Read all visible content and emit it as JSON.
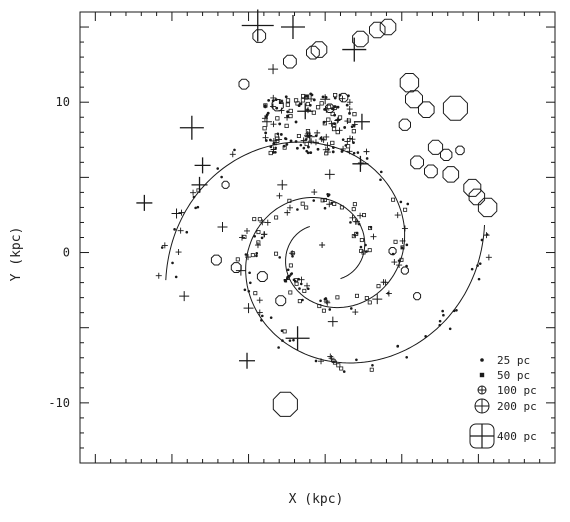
{
  "chart_data": {
    "type": "scatter",
    "xlabel": "X (kpc)",
    "ylabel": "Y (kpc)",
    "xlim": [
      -16,
      15
    ],
    "ylim": [
      -14,
      16
    ],
    "yticks_labeled": [
      -10,
      0,
      10
    ],
    "xtick_step_minor": 1,
    "xtick_step_major": 5,
    "ytick_step_minor": 1,
    "ytick_step_major": 5,
    "grid": false,
    "legend_position": "bottom-right",
    "legend": [
      {
        "symbol": "dot",
        "label": "25 pc"
      },
      {
        "symbol": "small-square",
        "label": "50 pc"
      },
      {
        "symbol": "circle-cross",
        "label": "100 pc"
      },
      {
        "symbol": "circle-cross",
        "label": "200 pc"
      },
      {
        "symbol": "square-cross",
        "label": "400 pc"
      }
    ],
    "spiral_arms": [
      {
        "a": 2.0,
        "pitch_deg": 12.5,
        "theta0_deg": -60,
        "sweep_deg": 430
      },
      {
        "a": 2.0,
        "pitch_deg": 12.5,
        "theta0_deg": 120,
        "sweep_deg": 430
      }
    ],
    "crosses": [
      {
        "x": -4.4,
        "y": 15.1,
        "size": 400
      },
      {
        "x": -2.1,
        "y": 15.0,
        "size": 200
      },
      {
        "x": 1.9,
        "y": 13.5,
        "size": 200
      },
      {
        "x": -8.7,
        "y": 8.3,
        "size": 200
      },
      {
        "x": -11.8,
        "y": 3.3,
        "size": 100
      },
      {
        "x": -1.8,
        "y": -5.7,
        "size": 200
      },
      {
        "x": -5.1,
        "y": -7.2,
        "size": 100
      },
      {
        "x": 2.3,
        "y": 5.9,
        "size": 100
      },
      {
        "x": -8.0,
        "y": 5.8,
        "size": 100
      },
      {
        "x": -8.2,
        "y": 4.5,
        "size": 100
      },
      {
        "x": -1.3,
        "y": 9.4,
        "size": 100
      },
      {
        "x": 2.4,
        "y": 8.7,
        "size": 100
      },
      {
        "x": -3.8,
        "y": 8.7,
        "size": 50
      },
      {
        "x": -1.0,
        "y": 7.7,
        "size": 50
      },
      {
        "x": -2.8,
        "y": 4.5,
        "size": 50
      },
      {
        "x": 0.3,
        "y": 5.2,
        "size": 50
      },
      {
        "x": -9.2,
        "y": -2.9,
        "size": 50
      },
      {
        "x": -6.7,
        "y": 1.7,
        "size": 50
      },
      {
        "x": -5.5,
        "y": -1.2,
        "size": 50
      },
      {
        "x": 0.5,
        "y": -4.6,
        "size": 50
      },
      {
        "x": 3.4,
        "y": -3.1,
        "size": 50
      },
      {
        "x": -9.7,
        "y": 2.6,
        "size": 50
      },
      {
        "x": -3.4,
        "y": 12.2,
        "size": 50
      },
      {
        "x": 0.0,
        "y": 10.2,
        "size": 50
      },
      {
        "x": -0.2,
        "y": 0.5,
        "size": 25
      },
      {
        "x": -5.0,
        "y": -3.7,
        "size": 50
      }
    ],
    "circles": [
      {
        "x": 3.4,
        "y": 14.8,
        "r": 0.55
      },
      {
        "x": 4.1,
        "y": 15.0,
        "r": 0.55
      },
      {
        "x": 2.3,
        "y": 14.2,
        "r": 0.55
      },
      {
        "x": -0.4,
        "y": 13.5,
        "r": 0.55
      },
      {
        "x": -0.8,
        "y": 13.3,
        "r": 0.45
      },
      {
        "x": -2.3,
        "y": 12.7,
        "r": 0.45
      },
      {
        "x": 5.5,
        "y": 11.3,
        "r": 0.65
      },
      {
        "x": 5.8,
        "y": 10.2,
        "r": 0.6
      },
      {
        "x": 6.6,
        "y": 9.5,
        "r": 0.55
      },
      {
        "x": 8.5,
        "y": 9.6,
        "r": 0.85
      },
      {
        "x": 5.2,
        "y": 8.5,
        "r": 0.4
      },
      {
        "x": 7.2,
        "y": 7.0,
        "r": 0.5
      },
      {
        "x": 7.9,
        "y": 6.5,
        "r": 0.4
      },
      {
        "x": 6.0,
        "y": 6.0,
        "r": 0.45
      },
      {
        "x": 6.9,
        "y": 5.4,
        "r": 0.45
      },
      {
        "x": 8.2,
        "y": 5.2,
        "r": 0.55
      },
      {
        "x": 9.6,
        "y": 4.3,
        "r": 0.6
      },
      {
        "x": 9.9,
        "y": 3.7,
        "r": 0.55
      },
      {
        "x": 10.6,
        "y": 3.0,
        "r": 0.65
      },
      {
        "x": 8.8,
        "y": 6.8,
        "r": 0.3
      },
      {
        "x": -4.3,
        "y": 14.4,
        "r": 0.45
      },
      {
        "x": -5.3,
        "y": 11.2,
        "r": 0.35
      },
      {
        "x": -3.1,
        "y": 9.8,
        "r": 0.4
      },
      {
        "x": -2.9,
        "y": -3.2,
        "r": 0.35
      },
      {
        "x": -4.1,
        "y": -1.6,
        "r": 0.35
      },
      {
        "x": -5.8,
        "y": -1.0,
        "r": 0.35
      },
      {
        "x": -7.1,
        "y": -0.5,
        "r": 0.35
      },
      {
        "x": -2.6,
        "y": -10.1,
        "r": 0.85
      },
      {
        "x": 6.0,
        "y": -2.9,
        "r": 0.25
      },
      {
        "x": 5.2,
        "y": -1.2,
        "r": 0.25
      },
      {
        "x": 4.4,
        "y": 0.1,
        "r": 0.25
      },
      {
        "x": -6.5,
        "y": 4.5,
        "r": 0.25
      },
      {
        "x": 0.3,
        "y": 9.6,
        "r": 0.3
      },
      {
        "x": 1.2,
        "y": 10.3,
        "r": 0.3
      }
    ],
    "dot_seed": 7,
    "legend_box_label": "400 pc"
  },
  "colors": {
    "ink": "#1a1a1a",
    "background": "#ffffff"
  }
}
